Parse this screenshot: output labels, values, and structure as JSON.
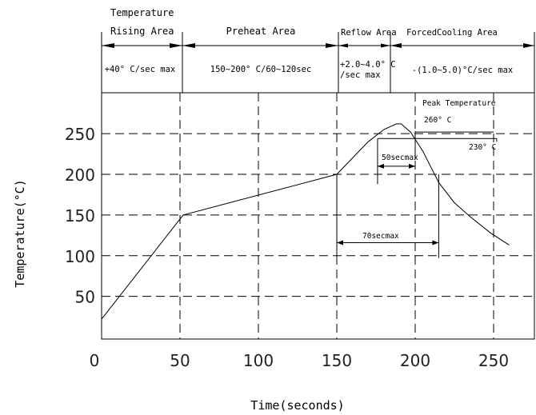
{
  "chart_data": {
    "type": "line",
    "xlabel": "Time(seconds)",
    "ylabel": "Temperature(°C)",
    "xlim": [
      0,
      265
    ],
    "ylim": [
      0,
      295
    ],
    "x_ticks": [
      0,
      50,
      100,
      150,
      200,
      250
    ],
    "y_ticks": [
      50,
      100,
      150,
      200,
      250
    ],
    "grid": true,
    "series": [
      {
        "points": [
          [
            0,
            22
          ],
          [
            52,
            150
          ],
          [
            150,
            200
          ],
          [
            170,
            240
          ],
          [
            180,
            255
          ],
          [
            188,
            262
          ],
          [
            191,
            262
          ],
          [
            197,
            252
          ],
          [
            205,
            228
          ],
          [
            215,
            190
          ],
          [
            225,
            165
          ],
          [
            235,
            148
          ],
          [
            248,
            128
          ],
          [
            260,
            113
          ]
        ]
      }
    ],
    "zones": [
      {
        "title_line1": "Temperature",
        "title_line2": "Rising Area",
        "rate": "+40° C/sec max",
        "x_from": 0,
        "x_to": 52
      },
      {
        "title_line1": "",
        "title_line2": "Preheat Area",
        "rate": "150~200° C/60~120sec",
        "x_from": 52,
        "x_to": 150
      },
      {
        "title_line1": "",
        "title_line2": "Reflow Area",
        "rate_line1": "+2.0~4.0° C",
        "rate_line2": "/sec max",
        "x_from": 150,
        "x_to": 183
      },
      {
        "title_line1": "",
        "title_line2": "ForcedCooling Area",
        "rate": "-(1.0~5.0)°C/sec max",
        "x_from": 183,
        "x_to": 265
      }
    ],
    "annotations": {
      "peak_label": "Peak Temperature",
      "peak_value": "260° C",
      "level_230": "230° C",
      "dur_50": "50secmax",
      "dur_70": "70secmax"
    }
  }
}
